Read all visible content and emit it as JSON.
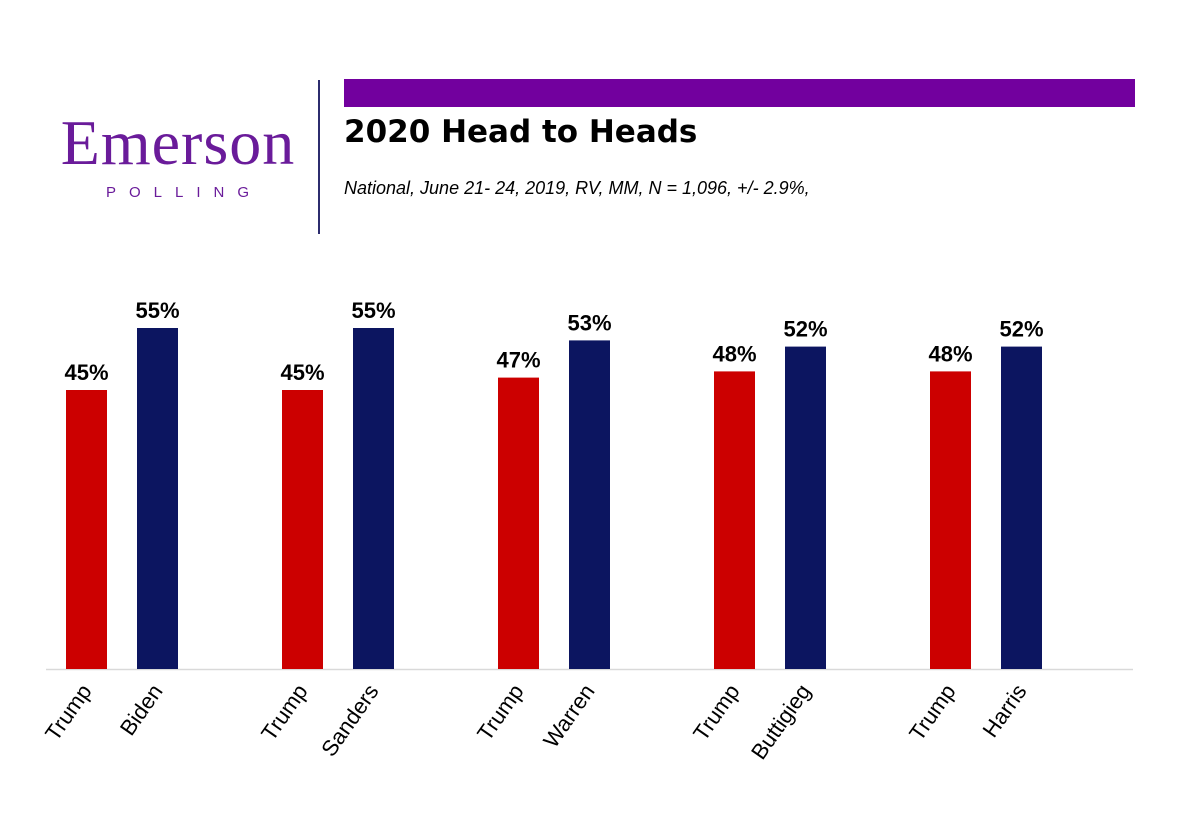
{
  "header": {
    "logo_name": "Emerson",
    "logo_sub": "POLLING",
    "brand_color": "#6a1b9a",
    "banner_color": "#72009e",
    "title": "2020 Head to Heads",
    "subtitle": "National, June 21- 24, 2019, RV, MM, N = 1,096,  +/- 2.9%,"
  },
  "chart_data": {
    "type": "bar",
    "title": "2020 Head to Heads",
    "subtitle": "National, June 21- 24, 2019, RV, MM, N = 1,096,  +/- 2.9%,",
    "xlabel": "",
    "ylabel": "",
    "ylim": [
      0,
      60
    ],
    "grid": false,
    "legend": "none",
    "groups": [
      {
        "bars": [
          {
            "label": "Trump",
            "value": 45,
            "display": "45%",
            "color": "#cc0000"
          },
          {
            "label": "Biden",
            "value": 55,
            "display": "55%",
            "color": "#0c1560"
          }
        ]
      },
      {
        "bars": [
          {
            "label": "Trump",
            "value": 45,
            "display": "45%",
            "color": "#cc0000"
          },
          {
            "label": "Sanders",
            "value": 55,
            "display": "55%",
            "color": "#0c1560"
          }
        ]
      },
      {
        "bars": [
          {
            "label": "Trump",
            "value": 47,
            "display": "47%",
            "color": "#cc0000"
          },
          {
            "label": "Warren",
            "value": 53,
            "display": "53%",
            "color": "#0c1560"
          }
        ]
      },
      {
        "bars": [
          {
            "label": "Trump",
            "value": 48,
            "display": "48%",
            "color": "#cc0000"
          },
          {
            "label": "Buttigieg",
            "value": 52,
            "display": "52%",
            "color": "#0c1560"
          }
        ]
      },
      {
        "bars": [
          {
            "label": "Trump",
            "value": 48,
            "display": "48%",
            "color": "#cc0000"
          },
          {
            "label": "Harris",
            "value": 52,
            "display": "52%",
            "color": "#0c1560"
          }
        ]
      }
    ]
  }
}
